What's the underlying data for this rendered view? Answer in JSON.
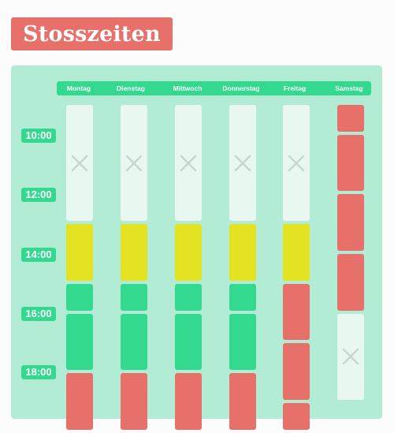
{
  "title": "Stosszeiten",
  "days": [
    "Montag",
    "Dienstag",
    "Mittwoch",
    "Donnerstag",
    "Freitag",
    "Samstag"
  ],
  "times": [
    "10:00",
    "12:00",
    "14:00",
    "16:00",
    "18:00"
  ],
  "colors": {
    "title_bg": "#e8706b",
    "panel_bg": "#b3ecd4",
    "header_bg": "#34d990",
    "closed": "#e8f8f1",
    "low": "#34d990",
    "medium": "#e3e324",
    "high": "#e8706b"
  },
  "schedule": [
    [
      [
        "closed",
        2
      ],
      [
        "medium",
        1
      ],
      [
        "low",
        0.5
      ],
      [
        "low",
        1
      ],
      [
        "high",
        1
      ]
    ],
    [
      [
        "closed",
        2
      ],
      [
        "medium",
        1
      ],
      [
        "low",
        0.5
      ],
      [
        "low",
        1
      ],
      [
        "high",
        1
      ]
    ],
    [
      [
        "closed",
        2
      ],
      [
        "medium",
        1
      ],
      [
        "low",
        0.5
      ],
      [
        "low",
        1
      ],
      [
        "high",
        1
      ]
    ],
    [
      [
        "closed",
        2
      ],
      [
        "medium",
        1
      ],
      [
        "low",
        0.5
      ],
      [
        "low",
        1
      ],
      [
        "high",
        1
      ]
    ],
    [
      [
        "closed",
        2
      ],
      [
        "medium",
        1
      ],
      [
        "high",
        1
      ],
      [
        "high",
        1
      ],
      [
        "high",
        0.5
      ]
    ],
    [
      [
        "high",
        0.5
      ],
      [
        "high",
        1
      ],
      [
        "high",
        1
      ],
      [
        "high",
        1
      ],
      [
        "closed",
        1.5
      ]
    ]
  ],
  "closed_icon": "close-icon"
}
